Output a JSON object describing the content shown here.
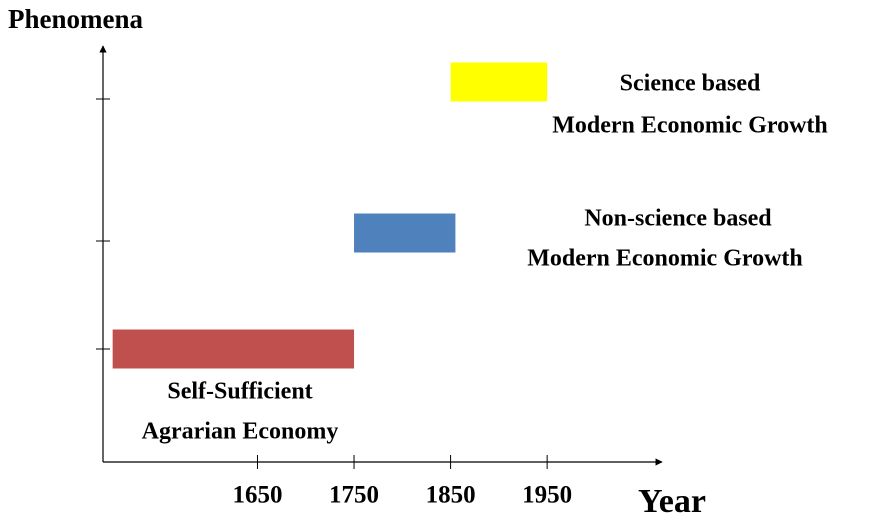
{
  "chart_data": {
    "type": "timeline-bar",
    "ylabel": "Phenomena",
    "xlabel": "Year",
    "xlim": [
      1490,
      2070
    ],
    "xticks": [
      1650,
      1750,
      1850,
      1950
    ],
    "bars": [
      {
        "label": [
          "Self-Sufficient",
          "Agrarian Economy"
        ],
        "start": 1500,
        "end": 1750,
        "color": "#c0504d"
      },
      {
        "label": [
          "Non-science based",
          "Modern Economic Growth"
        ],
        "start": 1750,
        "end": 1855,
        "color": "#4f81bd"
      },
      {
        "label": [
          "Science based",
          "Modern Economic Growth"
        ],
        "start": 1850,
        "end": 1950,
        "color": "#ffff00"
      }
    ]
  }
}
